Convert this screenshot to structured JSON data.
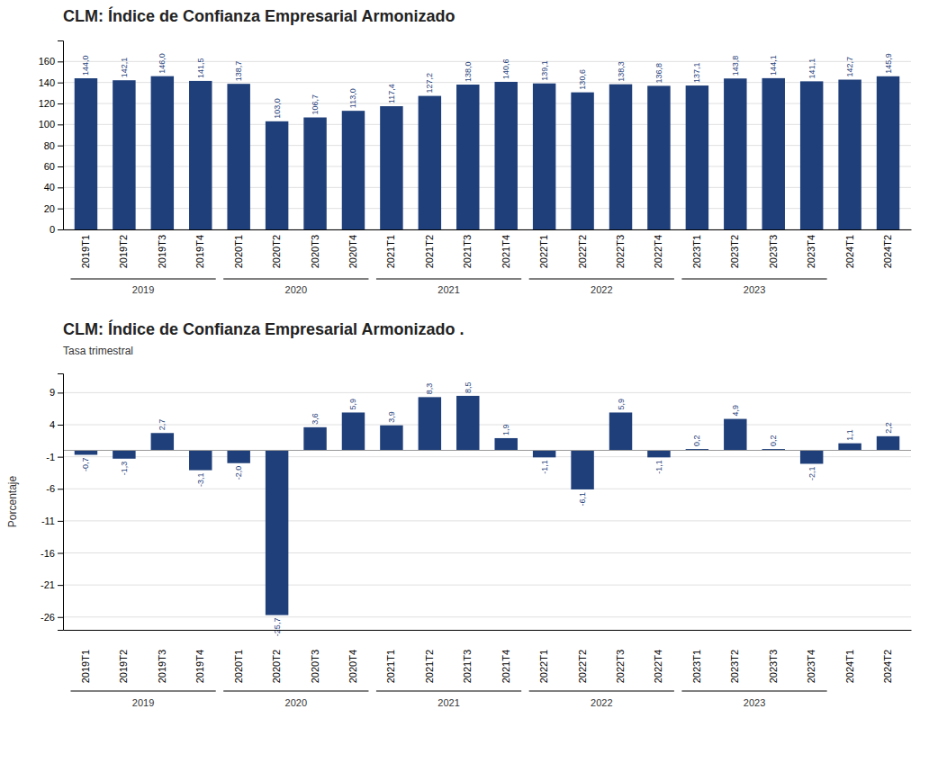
{
  "chart_data": [
    {
      "type": "bar",
      "title": "CLM: Índice de Confianza Empresarial Armonizado",
      "categories": [
        "2019T1",
        "2019T2",
        "2019T3",
        "2019T4",
        "2020T1",
        "2020T2",
        "2020T3",
        "2020T4",
        "2021T1",
        "2021T2",
        "2021T3",
        "2021T4",
        "2022T1",
        "2022T2",
        "2022T3",
        "2022T4",
        "2023T1",
        "2023T2",
        "2023T3",
        "2023T4",
        "2024T1",
        "2024T2"
      ],
      "values": [
        144.0,
        142.1,
        146.0,
        141.5,
        138.7,
        103.0,
        106.7,
        113.0,
        117.4,
        127.2,
        138.0,
        140.6,
        139.1,
        130.6,
        138.3,
        136.8,
        137.1,
        143.8,
        144.1,
        141.1,
        142.7,
        145.9
      ],
      "value_labels": [
        "144,0",
        "142,1",
        "146,0",
        "141,5",
        "138,7",
        "103,0",
        "106,7",
        "113,0",
        "117,4",
        "127,2",
        "138,0",
        "140,6",
        "139,1",
        "130,6",
        "138,3",
        "136,8",
        "137,1",
        "143,8",
        "144,1",
        "141,1",
        "142,7",
        "145,9"
      ],
      "data_labels": true,
      "color": "#1F3F7A",
      "ylim": [
        0,
        180
      ],
      "yticks": [
        0,
        20,
        40,
        60,
        80,
        100,
        120,
        140,
        160
      ],
      "grid": true,
      "groups": [
        {
          "label": "2019",
          "start": "2019T1",
          "end": "2019T4"
        },
        {
          "label": "2020",
          "start": "2020T1",
          "end": "2020T4"
        },
        {
          "label": "2021",
          "start": "2021T1",
          "end": "2021T4"
        },
        {
          "label": "2022",
          "start": "2022T1",
          "end": "2022T4"
        },
        {
          "label": "2023",
          "start": "2023T1",
          "end": "2023T4"
        }
      ]
    },
    {
      "type": "bar",
      "title": "CLM: Índice de Confianza Empresarial Armonizado .",
      "subtitle": "Tasa trimestral",
      "y_label": "Porcentaje",
      "categories": [
        "2019T1",
        "2019T2",
        "2019T3",
        "2019T4",
        "2020T1",
        "2020T2",
        "2020T3",
        "2020T4",
        "2021T1",
        "2021T2",
        "2021T3",
        "2021T4",
        "2022T1",
        "2022T2",
        "2022T3",
        "2022T4",
        "2023T1",
        "2023T2",
        "2023T3",
        "2023T4",
        "2024T1",
        "2024T2"
      ],
      "values": [
        -0.7,
        -1.3,
        2.7,
        -3.1,
        -2.0,
        -25.7,
        3.6,
        5.9,
        3.9,
        8.3,
        8.5,
        1.9,
        -1.1,
        -6.1,
        5.9,
        -1.1,
        0.2,
        4.9,
        0.2,
        -2.1,
        1.1,
        2.2
      ],
      "value_labels": [
        "-0,7",
        "-1,3",
        "2,7",
        "-3,1",
        "-2,0",
        "-25,7",
        "3,6",
        "5,9",
        "3,9",
        "8,3",
        "8,5",
        "1,9",
        "-1,1",
        "-6,1",
        "5,9",
        "-1,1",
        "0,2",
        "4,9",
        "0,2",
        "-2,1",
        "1,1",
        "2,2"
      ],
      "data_labels": true,
      "color": "#1F3F7A",
      "ylim": [
        -28,
        12
      ],
      "yticks": [
        -26,
        -21,
        -16,
        -11,
        -6,
        -1,
        4,
        9
      ],
      "grid": true,
      "baseline": 0,
      "groups": [
        {
          "label": "2019",
          "start": "2019T1",
          "end": "2019T4"
        },
        {
          "label": "2020",
          "start": "2020T1",
          "end": "2020T4"
        },
        {
          "label": "2021",
          "start": "2021T1",
          "end": "2021T4"
        },
        {
          "label": "2022",
          "start": "2022T1",
          "end": "2022T4"
        },
        {
          "label": "2023",
          "start": "2023T1",
          "end": "2023T4"
        }
      ]
    }
  ]
}
